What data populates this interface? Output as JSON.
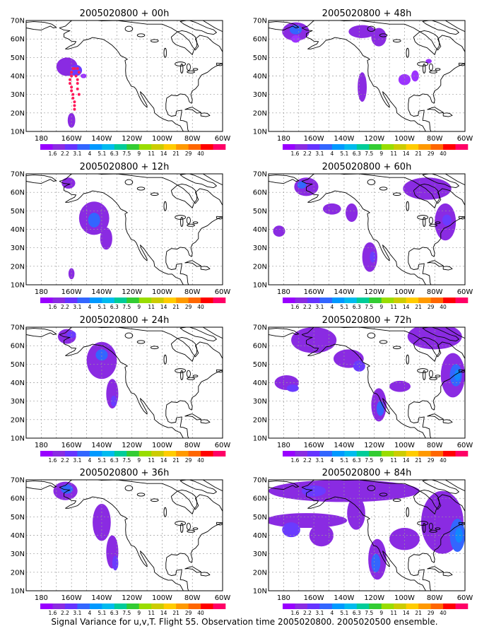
{
  "caption": "Signal Variance for u,v,T. Flight 55. Observation time 2005020800. 2005020500 ensemble.",
  "panels": [
    {
      "title": "2005020800 + 00h",
      "blobs": [
        {
          "lon": -163,
          "lat": 45,
          "rx": 7,
          "ry": 5,
          "level": 2
        },
        {
          "lon": -157,
          "lat": 43,
          "rx": 4,
          "ry": 3,
          "level": 3
        },
        {
          "lon": -152,
          "lat": 40,
          "rx": 2,
          "ry": 1.2,
          "level": 1
        },
        {
          "lon": -160,
          "lat": 16,
          "rx": 2.5,
          "ry": 4,
          "level": 2
        }
      ],
      "track": [
        [
          -159,
          44
        ],
        [
          -160,
          42
        ],
        [
          -160,
          40
        ],
        [
          -161,
          38
        ],
        [
          -161,
          36
        ],
        [
          -160,
          34
        ],
        [
          -160,
          32
        ],
        [
          -159,
          30
        ],
        [
          -159,
          28
        ],
        [
          -158,
          26
        ],
        [
          -158,
          24
        ],
        [
          -158,
          22
        ],
        [
          -157,
          40
        ],
        [
          -156,
          38
        ],
        [
          -156,
          36
        ],
        [
          -156,
          33
        ],
        [
          -155,
          30
        ],
        [
          -158,
          44
        ],
        [
          -156,
          44
        ],
        [
          -155,
          42
        ]
      ]
    },
    {
      "title": "2005020800 + 48h",
      "blobs": [
        {
          "lon": -172,
          "lat": 64,
          "rx": 9,
          "ry": 5,
          "level": 2
        },
        {
          "lon": -172,
          "lat": 65,
          "rx": 4,
          "ry": 2.5,
          "level": 4
        },
        {
          "lon": -172,
          "lat": 60,
          "rx": 3,
          "ry": 2,
          "level": 1
        },
        {
          "lon": -128,
          "lat": 64,
          "rx": 9,
          "ry": 3.5,
          "level": 2
        },
        {
          "lon": -117,
          "lat": 61,
          "rx": 5,
          "ry": 5,
          "level": 2
        },
        {
          "lon": -128,
          "lat": 34,
          "rx": 3,
          "ry": 8,
          "level": 2
        },
        {
          "lon": -100,
          "lat": 38,
          "rx": 4,
          "ry": 3,
          "level": 1
        },
        {
          "lon": -93,
          "lat": 40,
          "rx": 2.5,
          "ry": 3,
          "level": 1
        },
        {
          "lon": -84,
          "lat": 48,
          "rx": 2,
          "ry": 1.2,
          "level": 1
        }
      ]
    },
    {
      "title": "2005020800 + 12h",
      "blobs": [
        {
          "lon": -162,
          "lat": 65,
          "rx": 4.5,
          "ry": 3,
          "level": 2
        },
        {
          "lon": -145,
          "lat": 46,
          "rx": 10,
          "ry": 9,
          "level": 2
        },
        {
          "lon": -145,
          "lat": 45,
          "rx": 4,
          "ry": 4,
          "level": 4
        },
        {
          "lon": -137,
          "lat": 35,
          "rx": 4,
          "ry": 6,
          "level": 2
        },
        {
          "lon": -160,
          "lat": 16,
          "rx": 2,
          "ry": 3,
          "level": 2
        }
      ]
    },
    {
      "title": "2005020800 + 60h",
      "blobs": [
        {
          "lon": -165,
          "lat": 63,
          "rx": 8,
          "ry": 5,
          "level": 2
        },
        {
          "lon": -168,
          "lat": 64,
          "rx": 3,
          "ry": 2,
          "level": 4
        },
        {
          "lon": -183,
          "lat": 39,
          "rx": 4,
          "ry": 3,
          "level": 2
        },
        {
          "lon": -148,
          "lat": 51,
          "rx": 6,
          "ry": 3,
          "level": 2
        },
        {
          "lon": -135,
          "lat": 49,
          "rx": 4,
          "ry": 5,
          "level": 2
        },
        {
          "lon": -123,
          "lat": 25,
          "rx": 5,
          "ry": 8,
          "level": 2
        },
        {
          "lon": -121,
          "lat": 25,
          "rx": 2,
          "ry": 3,
          "level": 3
        },
        {
          "lon": -85,
          "lat": 62,
          "rx": 16,
          "ry": 6,
          "level": 2
        },
        {
          "lon": -73,
          "lat": 44,
          "rx": 7,
          "ry": 10,
          "level": 2
        },
        {
          "lon": -72,
          "lat": 45,
          "rx": 3,
          "ry": 3,
          "level": 3
        }
      ]
    },
    {
      "title": "2005020800 + 24h",
      "blobs": [
        {
          "lon": -163,
          "lat": 65,
          "rx": 6,
          "ry": 4,
          "level": 2
        },
        {
          "lon": -160,
          "lat": 66,
          "rx": 3,
          "ry": 2,
          "level": 3
        },
        {
          "lon": -140,
          "lat": 52,
          "rx": 10,
          "ry": 10,
          "level": 2
        },
        {
          "lon": -140,
          "lat": 55,
          "rx": 4,
          "ry": 3,
          "level": 4
        },
        {
          "lon": -133,
          "lat": 34,
          "rx": 4,
          "ry": 8,
          "level": 2
        },
        {
          "lon": -132,
          "lat": 30,
          "rx": 2,
          "ry": 3,
          "level": 3
        }
      ]
    },
    {
      "title": "2005020800 + 72h",
      "blobs": [
        {
          "lon": -160,
          "lat": 63,
          "rx": 15,
          "ry": 7,
          "level": 2
        },
        {
          "lon": -137,
          "lat": 53,
          "rx": 10,
          "ry": 5,
          "level": 2
        },
        {
          "lon": -130,
          "lat": 49,
          "rx": 4,
          "ry": 3,
          "level": 3
        },
        {
          "lon": -178,
          "lat": 40,
          "rx": 8,
          "ry": 4,
          "level": 2
        },
        {
          "lon": -174,
          "lat": 37,
          "rx": 4,
          "ry": 2,
          "level": 3
        },
        {
          "lon": -117,
          "lat": 28,
          "rx": 5,
          "ry": 9,
          "level": 2
        },
        {
          "lon": -116,
          "lat": 26,
          "rx": 2.5,
          "ry": 4,
          "level": 4
        },
        {
          "lon": -103,
          "lat": 38,
          "rx": 7,
          "ry": 3,
          "level": 2
        },
        {
          "lon": -80,
          "lat": 65,
          "rx": 18,
          "ry": 7,
          "level": 2
        },
        {
          "lon": -68,
          "lat": 44,
          "rx": 8,
          "ry": 12,
          "level": 2
        },
        {
          "lon": -66,
          "lat": 44,
          "rx": 4,
          "ry": 6,
          "level": 4
        },
        {
          "lon": -65,
          "lat": 44,
          "rx": 2,
          "ry": 3,
          "level": 5
        }
      ]
    },
    {
      "title": "2005020800 + 36h",
      "blobs": [
        {
          "lon": -164,
          "lat": 64,
          "rx": 8,
          "ry": 5,
          "level": 2
        },
        {
          "lon": -163,
          "lat": 65,
          "rx": 4,
          "ry": 2.5,
          "level": 4
        },
        {
          "lon": -140,
          "lat": 47,
          "rx": 6,
          "ry": 10,
          "level": 2
        },
        {
          "lon": -133,
          "lat": 31,
          "rx": 4,
          "ry": 9,
          "level": 2
        },
        {
          "lon": -131,
          "lat": 25,
          "rx": 2,
          "ry": 4,
          "level": 3
        }
      ]
    },
    {
      "title": "2005020800 + 84h",
      "blobs": [
        {
          "lon": -140,
          "lat": 64,
          "rx": 50,
          "ry": 6,
          "level": 2
        },
        {
          "lon": -160,
          "lat": 64,
          "rx": 8,
          "ry": 3,
          "level": 3
        },
        {
          "lon": -165,
          "lat": 48,
          "rx": 27,
          "ry": 4,
          "level": 2
        },
        {
          "lon": -155,
          "lat": 40,
          "rx": 8,
          "ry": 6,
          "level": 2
        },
        {
          "lon": -175,
          "lat": 43,
          "rx": 6,
          "ry": 4,
          "level": 3
        },
        {
          "lon": -132,
          "lat": 52,
          "rx": 6,
          "ry": 9,
          "level": 2
        },
        {
          "lon": -118,
          "lat": 27,
          "rx": 6,
          "ry": 11,
          "level": 2
        },
        {
          "lon": -119,
          "lat": 25,
          "rx": 3,
          "ry": 5,
          "level": 4
        },
        {
          "lon": -100,
          "lat": 38,
          "rx": 10,
          "ry": 6,
          "level": 2
        },
        {
          "lon": -75,
          "lat": 47,
          "rx": 14,
          "ry": 17,
          "level": 2
        },
        {
          "lon": -65,
          "lat": 40,
          "rx": 5,
          "ry": 9,
          "level": 4
        },
        {
          "lon": -64,
          "lat": 40,
          "rx": 2.5,
          "ry": 4,
          "level": 5
        }
      ]
    }
  ],
  "lon_ticks": [
    "180",
    "160W",
    "140W",
    "120W",
    "100W",
    "80W",
    "60W"
  ],
  "lat_ticks": [
    "10N",
    "20N",
    "30N",
    "40N",
    "50N",
    "60N",
    "70N"
  ],
  "colorbar": {
    "colors": [
      "#9900ff",
      "#8a2be2",
      "#6633ff",
      "#3366ff",
      "#0099ff",
      "#00bbee",
      "#00cc99",
      "#33cc33",
      "#99dd00",
      "#cccc00",
      "#ffcc00",
      "#ff9900",
      "#ff6600",
      "#ff0000",
      "#ff0066"
    ],
    "labels": [
      "1.6",
      "2.2",
      "3.1",
      "4",
      "5.1",
      "6.3",
      "7.5",
      "9",
      "11",
      "14",
      "21",
      "29",
      "40"
    ]
  },
  "shading_colors": [
    "#9c33ff",
    "#8a2be2",
    "#6a3bff",
    "#3366ff",
    "#1188ff"
  ],
  "track_color": "#ff1a5a"
}
